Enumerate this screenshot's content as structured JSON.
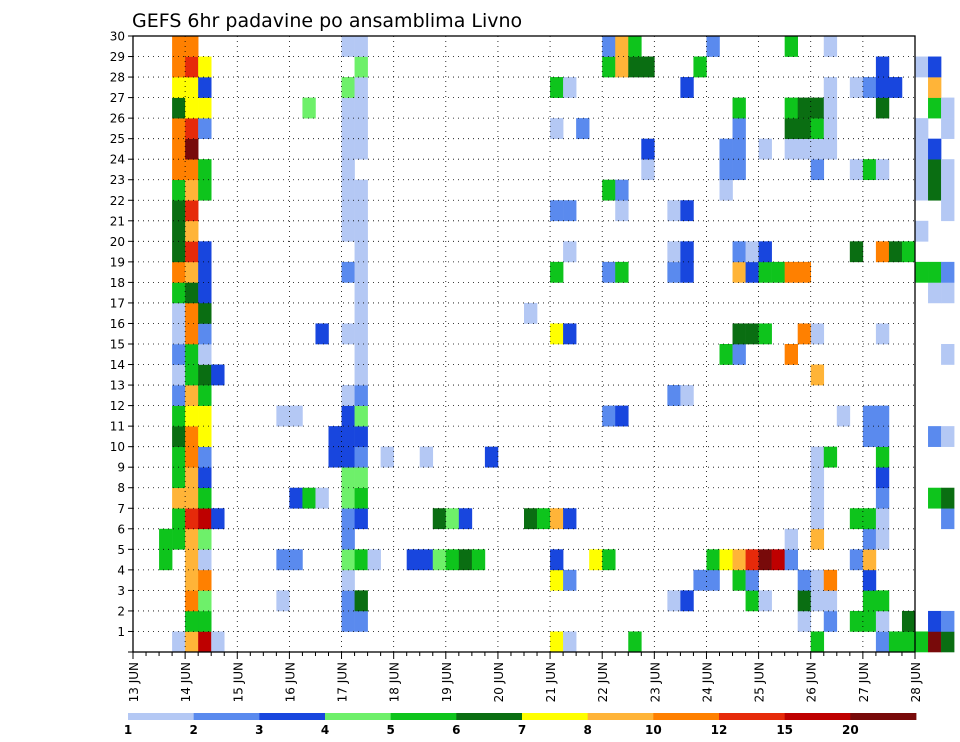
{
  "chart_data": {
    "type": "heatmap",
    "title": "GEFS 6hr padavine po ansamblima Livno",
    "x_tick_labels": [
      "13 JUN",
      "14 JUN",
      "15 JUN",
      "16 JUN",
      "17 JUN",
      "18 JUN",
      "19 JUN",
      "20 JUN",
      "21 JUN",
      "22 JUN",
      "23 JUN",
      "24 JUN",
      "25 JUN",
      "26 JUN",
      "27 JUN",
      "28 JUN"
    ],
    "y_tick_labels": [
      "1",
      "2",
      "3",
      "4",
      "5",
      "6",
      "7",
      "8",
      "9",
      "10",
      "11",
      "12",
      "13",
      "14",
      "15",
      "16",
      "17",
      "18",
      "19",
      "20",
      "21",
      "22",
      "23",
      "24",
      "25",
      "26",
      "27",
      "28",
      "29",
      "30"
    ],
    "x_range_hours": [
      0,
      360
    ],
    "time_step_hours": 6,
    "y_range": [
      0,
      30
    ],
    "grid": "dotted",
    "colorbar": {
      "placement": "bottom",
      "labels": [
        "1",
        "2",
        "3",
        "4",
        "5",
        "6",
        "7",
        "8",
        "10",
        "12",
        "15",
        "20"
      ],
      "colors": [
        "#b4c8f4",
        "#5a8aee",
        "#1846de",
        "#6ef06a",
        "#0ec41c",
        "#0a6e12",
        "#ffff00",
        "#ffb438",
        "#ff8000",
        "#e62a0a",
        "#be0000",
        "#780a0a"
      ]
    },
    "cells": [
      [
        3,
        0,
        1
      ],
      [
        4,
        1,
        2
      ],
      [
        5,
        1,
        3
      ],
      [
        5,
        2,
        2
      ],
      [
        4,
        3,
        2
      ],
      [
        2,
        4,
        5
      ],
      [
        2,
        5,
        5
      ],
      [
        3,
        5,
        5
      ],
      [
        3,
        6,
        5
      ],
      [
        3,
        7,
        8
      ],
      [
        3,
        8,
        5
      ],
      [
        3,
        9,
        5
      ],
      [
        3,
        10,
        6
      ],
      [
        3,
        11,
        5
      ],
      [
        3,
        12,
        2
      ],
      [
        3,
        13,
        1
      ],
      [
        3,
        14,
        2
      ],
      [
        3,
        15,
        1
      ],
      [
        3,
        16,
        1
      ],
      [
        3,
        17,
        5
      ],
      [
        3,
        18,
        10
      ],
      [
        3,
        19,
        6
      ],
      [
        3,
        20,
        6
      ],
      [
        3,
        21,
        6
      ],
      [
        3,
        22,
        5
      ],
      [
        3,
        23,
        10
      ],
      [
        3,
        24,
        10
      ],
      [
        3,
        25,
        10
      ],
      [
        3,
        26,
        6
      ],
      [
        3,
        27,
        7
      ],
      [
        3,
        28,
        10
      ],
      [
        3,
        29,
        10
      ],
      [
        4,
        0,
        8
      ],
      [
        4,
        1,
        5
      ],
      [
        4,
        2,
        10
      ],
      [
        4,
        3,
        8
      ],
      [
        4,
        4,
        8
      ],
      [
        4,
        5,
        8
      ],
      [
        4,
        6,
        12
      ],
      [
        4,
        7,
        8
      ],
      [
        4,
        8,
        8
      ],
      [
        4,
        9,
        10
      ],
      [
        4,
        10,
        10
      ],
      [
        4,
        11,
        7
      ],
      [
        4,
        12,
        8
      ],
      [
        4,
        13,
        5
      ],
      [
        4,
        14,
        5
      ],
      [
        4,
        15,
        10
      ],
      [
        4,
        16,
        10
      ],
      [
        4,
        17,
        6
      ],
      [
        4,
        18,
        8
      ],
      [
        4,
        19,
        12
      ],
      [
        4,
        20,
        8
      ],
      [
        4,
        21,
        12
      ],
      [
        4,
        22,
        8
      ],
      [
        4,
        23,
        10
      ],
      [
        4,
        24,
        20
      ],
      [
        4,
        25,
        12
      ],
      [
        4,
        26,
        7
      ],
      [
        4,
        27,
        7
      ],
      [
        4,
        28,
        12
      ],
      [
        4,
        29,
        10
      ],
      [
        5,
        0,
        15
      ],
      [
        5,
        1,
        5
      ],
      [
        5,
        2,
        4
      ],
      [
        5,
        3,
        10
      ],
      [
        5,
        4,
        1
      ],
      [
        5,
        5,
        4
      ],
      [
        5,
        6,
        15
      ],
      [
        5,
        7,
        5
      ],
      [
        5,
        8,
        3
      ],
      [
        5,
        9,
        2
      ],
      [
        5,
        10,
        7
      ],
      [
        5,
        11,
        7
      ],
      [
        5,
        12,
        5
      ],
      [
        5,
        13,
        6
      ],
      [
        5,
        14,
        1
      ],
      [
        5,
        15,
        2
      ],
      [
        5,
        16,
        6
      ],
      [
        5,
        17,
        3
      ],
      [
        5,
        18,
        3
      ],
      [
        5,
        19,
        3
      ],
      [
        5,
        22,
        5
      ],
      [
        5,
        23,
        5
      ],
      [
        5,
        25,
        2
      ],
      [
        5,
        26,
        7
      ],
      [
        5,
        27,
        3
      ],
      [
        5,
        28,
        7
      ],
      [
        6,
        0,
        1
      ],
      [
        6,
        6,
        3
      ],
      [
        6,
        13,
        3
      ],
      [
        11,
        2,
        1
      ],
      [
        11,
        4,
        2
      ],
      [
        11,
        11,
        1
      ],
      [
        12,
        4,
        2
      ],
      [
        12,
        7,
        3
      ],
      [
        12,
        11,
        1
      ],
      [
        13,
        7,
        5
      ],
      [
        13,
        26,
        4
      ],
      [
        14,
        7,
        1
      ],
      [
        14,
        15,
        3
      ],
      [
        15,
        9,
        3
      ],
      [
        15,
        10,
        3
      ],
      [
        16,
        1,
        2
      ],
      [
        16,
        2,
        2
      ],
      [
        16,
        3,
        1
      ],
      [
        16,
        4,
        4
      ],
      [
        16,
        5,
        2
      ],
      [
        16,
        6,
        2
      ],
      [
        16,
        7,
        4
      ],
      [
        16,
        8,
        4
      ],
      [
        16,
        9,
        3
      ],
      [
        16,
        10,
        3
      ],
      [
        16,
        11,
        3
      ],
      [
        16,
        12,
        1
      ],
      [
        16,
        15,
        1
      ],
      [
        16,
        18,
        2
      ],
      [
        16,
        20,
        1
      ],
      [
        16,
        21,
        1
      ],
      [
        16,
        22,
        1
      ],
      [
        16,
        23,
        1
      ],
      [
        16,
        24,
        1
      ],
      [
        16,
        25,
        1
      ],
      [
        16,
        26,
        1
      ],
      [
        16,
        27,
        4
      ],
      [
        16,
        29,
        1
      ],
      [
        17,
        1,
        2
      ],
      [
        17,
        2,
        6
      ],
      [
        17,
        4,
        5
      ],
      [
        17,
        6,
        3
      ],
      [
        17,
        7,
        5
      ],
      [
        17,
        8,
        4
      ],
      [
        17,
        9,
        2
      ],
      [
        17,
        10,
        3
      ],
      [
        17,
        11,
        4
      ],
      [
        17,
        12,
        2
      ],
      [
        17,
        13,
        1
      ],
      [
        17,
        14,
        1
      ],
      [
        17,
        15,
        1
      ],
      [
        17,
        16,
        1
      ],
      [
        17,
        17,
        1
      ],
      [
        17,
        18,
        1
      ],
      [
        17,
        19,
        1
      ],
      [
        17,
        20,
        1
      ],
      [
        17,
        21,
        1
      ],
      [
        17,
        22,
        1
      ],
      [
        17,
        24,
        1
      ],
      [
        17,
        25,
        1
      ],
      [
        17,
        26,
        1
      ],
      [
        17,
        27,
        1
      ],
      [
        17,
        28,
        4
      ],
      [
        17,
        29,
        1
      ],
      [
        18,
        4,
        1
      ],
      [
        19,
        9,
        1
      ],
      [
        21,
        4,
        3
      ],
      [
        22,
        4,
        3
      ],
      [
        22,
        9,
        1
      ],
      [
        23,
        4,
        4
      ],
      [
        23,
        6,
        6
      ],
      [
        24,
        4,
        5
      ],
      [
        24,
        6,
        4
      ],
      [
        25,
        4,
        6
      ],
      [
        25,
        6,
        3
      ],
      [
        26,
        4,
        5
      ],
      [
        27,
        9,
        3
      ],
      [
        30,
        6,
        6
      ],
      [
        30,
        16,
        1
      ],
      [
        31,
        6,
        5
      ],
      [
        32,
        0,
        7
      ],
      [
        32,
        3,
        7
      ],
      [
        32,
        4,
        3
      ],
      [
        32,
        6,
        8
      ],
      [
        32,
        15,
        7
      ],
      [
        32,
        18,
        5
      ],
      [
        32,
        21,
        2
      ],
      [
        32,
        25,
        1
      ],
      [
        32,
        27,
        5
      ],
      [
        33,
        0,
        1
      ],
      [
        33,
        3,
        2
      ],
      [
        33,
        6,
        3
      ],
      [
        33,
        15,
        3
      ],
      [
        33,
        19,
        1
      ],
      [
        33,
        21,
        2
      ],
      [
        33,
        27,
        1
      ],
      [
        34,
        25,
        2
      ],
      [
        35,
        4,
        7
      ],
      [
        36,
        4,
        5
      ],
      [
        36,
        11,
        2
      ],
      [
        36,
        18,
        2
      ],
      [
        36,
        22,
        5
      ],
      [
        36,
        28,
        5
      ],
      [
        36,
        29,
        2
      ],
      [
        37,
        11,
        3
      ],
      [
        37,
        18,
        5
      ],
      [
        37,
        21,
        1
      ],
      [
        37,
        22,
        2
      ],
      [
        37,
        28,
        8
      ],
      [
        37,
        29,
        8
      ],
      [
        38,
        0,
        5
      ],
      [
        38,
        28,
        6
      ],
      [
        38,
        29,
        5
      ],
      [
        39,
        23,
        1
      ],
      [
        39,
        24,
        3
      ],
      [
        39,
        28,
        6
      ],
      [
        41,
        2,
        1
      ],
      [
        41,
        12,
        2
      ],
      [
        41,
        18,
        2
      ],
      [
        41,
        19,
        1
      ],
      [
        41,
        21,
        1
      ],
      [
        42,
        2,
        3
      ],
      [
        42,
        12,
        1
      ],
      [
        42,
        18,
        3
      ],
      [
        42,
        19,
        3
      ],
      [
        42,
        21,
        3
      ],
      [
        42,
        27,
        3
      ],
      [
        43,
        3,
        2
      ],
      [
        43,
        28,
        5
      ],
      [
        44,
        3,
        2
      ],
      [
        44,
        4,
        5
      ],
      [
        44,
        29,
        2
      ],
      [
        45,
        4,
        7
      ],
      [
        45,
        14,
        5
      ],
      [
        45,
        22,
        1
      ],
      [
        45,
        23,
        2
      ],
      [
        45,
        24,
        2
      ],
      [
        46,
        3,
        5
      ],
      [
        46,
        4,
        8
      ],
      [
        46,
        14,
        2
      ],
      [
        46,
        15,
        6
      ],
      [
        46,
        18,
        8
      ],
      [
        46,
        19,
        2
      ],
      [
        46,
        23,
        2
      ],
      [
        46,
        24,
        2
      ],
      [
        46,
        25,
        2
      ],
      [
        46,
        26,
        5
      ],
      [
        47,
        2,
        5
      ],
      [
        47,
        3,
        2
      ],
      [
        47,
        4,
        12
      ],
      [
        47,
        15,
        6
      ],
      [
        47,
        18,
        3
      ],
      [
        47,
        19,
        1
      ],
      [
        48,
        2,
        1
      ],
      [
        48,
        4,
        20
      ],
      [
        48,
        15,
        5
      ],
      [
        48,
        18,
        5
      ],
      [
        48,
        19,
        3
      ],
      [
        48,
        24,
        1
      ],
      [
        49,
        4,
        15
      ],
      [
        49,
        18,
        5
      ],
      [
        50,
        4,
        2
      ],
      [
        50,
        5,
        1
      ],
      [
        50,
        14,
        10
      ],
      [
        50,
        18,
        10
      ],
      [
        50,
        24,
        1
      ],
      [
        50,
        25,
        6
      ],
      [
        50,
        26,
        5
      ],
      [
        50,
        29,
        5
      ],
      [
        51,
        1,
        1
      ],
      [
        51,
        2,
        6
      ],
      [
        51,
        3,
        2
      ],
      [
        51,
        15,
        10
      ],
      [
        51,
        18,
        10
      ],
      [
        51,
        24,
        1
      ],
      [
        51,
        25,
        6
      ],
      [
        51,
        26,
        6
      ],
      [
        52,
        0,
        5
      ],
      [
        52,
        2,
        1
      ],
      [
        52,
        3,
        1
      ],
      [
        52,
        5,
        8
      ],
      [
        52,
        6,
        1
      ],
      [
        52,
        7,
        1
      ],
      [
        52,
        8,
        1
      ],
      [
        52,
        9,
        1
      ],
      [
        52,
        13,
        8
      ],
      [
        52,
        15,
        1
      ],
      [
        52,
        23,
        2
      ],
      [
        52,
        24,
        1
      ],
      [
        52,
        25,
        5
      ],
      [
        52,
        26,
        6
      ],
      [
        53,
        1,
        2
      ],
      [
        53,
        2,
        1
      ],
      [
        53,
        3,
        10
      ],
      [
        53,
        9,
        5
      ],
      [
        53,
        24,
        1
      ],
      [
        53,
        25,
        1
      ],
      [
        53,
        26,
        1
      ],
      [
        53,
        27,
        1
      ],
      [
        53,
        29,
        1
      ],
      [
        54,
        11,
        1
      ],
      [
        55,
        1,
        5
      ],
      [
        55,
        4,
        2
      ],
      [
        55,
        6,
        5
      ],
      [
        55,
        19,
        6
      ],
      [
        55,
        23,
        1
      ],
      [
        55,
        27,
        1
      ],
      [
        56,
        1,
        5
      ],
      [
        56,
        2,
        5
      ],
      [
        56,
        3,
        3
      ],
      [
        56,
        4,
        8
      ],
      [
        56,
        5,
        2
      ],
      [
        56,
        6,
        5
      ],
      [
        56,
        10,
        2
      ],
      [
        56,
        11,
        2
      ],
      [
        56,
        23,
        5
      ],
      [
        56,
        27,
        2
      ],
      [
        57,
        0,
        2
      ],
      [
        57,
        1,
        1
      ],
      [
        57,
        2,
        5
      ],
      [
        57,
        5,
        1
      ],
      [
        57,
        6,
        1
      ],
      [
        57,
        7,
        2
      ],
      [
        57,
        8,
        3
      ],
      [
        57,
        9,
        5
      ],
      [
        57,
        10,
        2
      ],
      [
        57,
        11,
        2
      ],
      [
        57,
        15,
        1
      ],
      [
        57,
        19,
        10
      ],
      [
        57,
        23,
        1
      ],
      [
        57,
        26,
        6
      ],
      [
        57,
        27,
        3
      ],
      [
        57,
        28,
        3
      ],
      [
        58,
        0,
        5
      ],
      [
        58,
        19,
        6
      ],
      [
        58,
        27,
        3
      ],
      [
        59,
        0,
        5
      ],
      [
        59,
        1,
        6
      ],
      [
        59,
        19,
        5
      ],
      [
        60,
        0,
        5
      ],
      [
        60,
        18,
        5
      ],
      [
        60,
        20,
        1
      ],
      [
        60,
        22,
        1
      ],
      [
        60,
        23,
        1
      ],
      [
        60,
        24,
        1
      ],
      [
        60,
        25,
        1
      ],
      [
        60,
        28,
        1
      ],
      [
        61,
        0,
        20
      ],
      [
        61,
        1,
        3
      ],
      [
        61,
        7,
        5
      ],
      [
        61,
        10,
        2
      ],
      [
        61,
        17,
        1
      ],
      [
        61,
        18,
        5
      ],
      [
        61,
        22,
        6
      ],
      [
        61,
        23,
        6
      ],
      [
        61,
        24,
        3
      ],
      [
        61,
        26,
        5
      ],
      [
        61,
        27,
        8
      ],
      [
        61,
        28,
        3
      ],
      [
        62,
        0,
        6
      ],
      [
        62,
        1,
        2
      ],
      [
        62,
        6,
        2
      ],
      [
        62,
        7,
        6
      ],
      [
        62,
        10,
        1
      ],
      [
        62,
        14,
        1
      ],
      [
        62,
        17,
        1
      ],
      [
        62,
        18,
        2
      ],
      [
        62,
        21,
        1
      ],
      [
        62,
        22,
        1
      ],
      [
        62,
        23,
        1
      ],
      [
        62,
        25,
        1
      ],
      [
        62,
        26,
        1
      ]
    ]
  }
}
